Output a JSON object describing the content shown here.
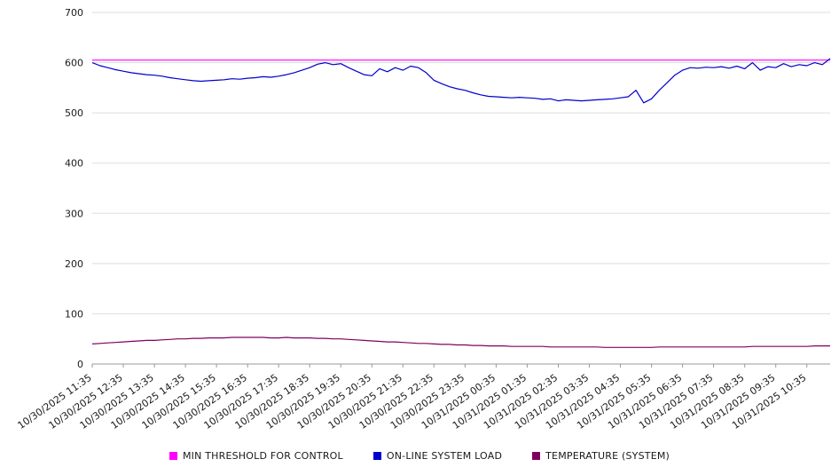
{
  "chart_data": {
    "type": "line",
    "title": "",
    "xlabel": "",
    "ylabel": "",
    "ylim": [
      0,
      700
    ],
    "y_ticks": [
      0,
      100,
      200,
      300,
      400,
      500,
      600,
      700
    ],
    "grid": "horizontal",
    "legend_position": "bottom",
    "points_per_label": 4,
    "x_labels": [
      "10/30/2025 11:35",
      "10/30/2025 12:35",
      "10/30/2025 13:35",
      "10/30/2025 14:35",
      "10/30/2025 15:35",
      "10/30/2025 16:35",
      "10/30/2025 17:35",
      "10/30/2025 18:35",
      "10/30/2025 19:35",
      "10/30/2025 20:35",
      "10/30/2025 21:35",
      "10/30/2025 22:35",
      "10/30/2025 23:35",
      "10/31/2025 00:35",
      "10/31/2025 01:35",
      "10/31/2025 02:35",
      "10/31/2025 03:35",
      "10/31/2025 04:35",
      "10/31/2025 05:35",
      "10/31/2025 06:35",
      "10/31/2025 07:35",
      "10/31/2025 08:35",
      "10/31/2025 09:35",
      "10/31/2025 10:35"
    ],
    "series": [
      {
        "name": "MIN THRESHOLD FOR CONTROL",
        "color": "#ff00ff",
        "constant": 605
      },
      {
        "name": "ON-LINE SYSTEM LOAD",
        "color": "#0000cc",
        "values": [
          600,
          594,
          590,
          586,
          583,
          580,
          578,
          576,
          575,
          573,
          570,
          568,
          566,
          564,
          563,
          564,
          565,
          566,
          568,
          567,
          569,
          570,
          572,
          571,
          573,
          576,
          580,
          585,
          590,
          597,
          600,
          596,
          598,
          590,
          583,
          576,
          574,
          588,
          582,
          590,
          585,
          593,
          590,
          580,
          565,
          558,
          552,
          548,
          545,
          540,
          536,
          533,
          532,
          531,
          530,
          531,
          530,
          529,
          527,
          528,
          524,
          526,
          525,
          524,
          525,
          526,
          527,
          528,
          530,
          532,
          545,
          520,
          528,
          545,
          560,
          575,
          585,
          590,
          589,
          591,
          590,
          592,
          589,
          593,
          588,
          600,
          585,
          592,
          590,
          598,
          592,
          596,
          594,
          600,
          596,
          608
        ]
      },
      {
        "name": "TEMPERATURE (SYSTEM)",
        "color": "#800060",
        "values": [
          40,
          41,
          42,
          43,
          44,
          45,
          46,
          47,
          47,
          48,
          49,
          50,
          50,
          51,
          51,
          52,
          52,
          52,
          53,
          53,
          53,
          53,
          53,
          52,
          52,
          53,
          52,
          52,
          52,
          51,
          51,
          50,
          50,
          49,
          48,
          47,
          46,
          45,
          44,
          44,
          43,
          42,
          41,
          41,
          40,
          39,
          39,
          38,
          38,
          37,
          37,
          36,
          36,
          36,
          35,
          35,
          35,
          35,
          35,
          34,
          34,
          34,
          34,
          34,
          34,
          34,
          33,
          33,
          33,
          33,
          33,
          33,
          33,
          34,
          34,
          34,
          34,
          34,
          34,
          34,
          34,
          34,
          34,
          34,
          34,
          35,
          35,
          35,
          35,
          35,
          35,
          35,
          35,
          36,
          36,
          36
        ]
      }
    ],
    "axis_color": "#999999",
    "gridline_color": "#dddddd"
  }
}
